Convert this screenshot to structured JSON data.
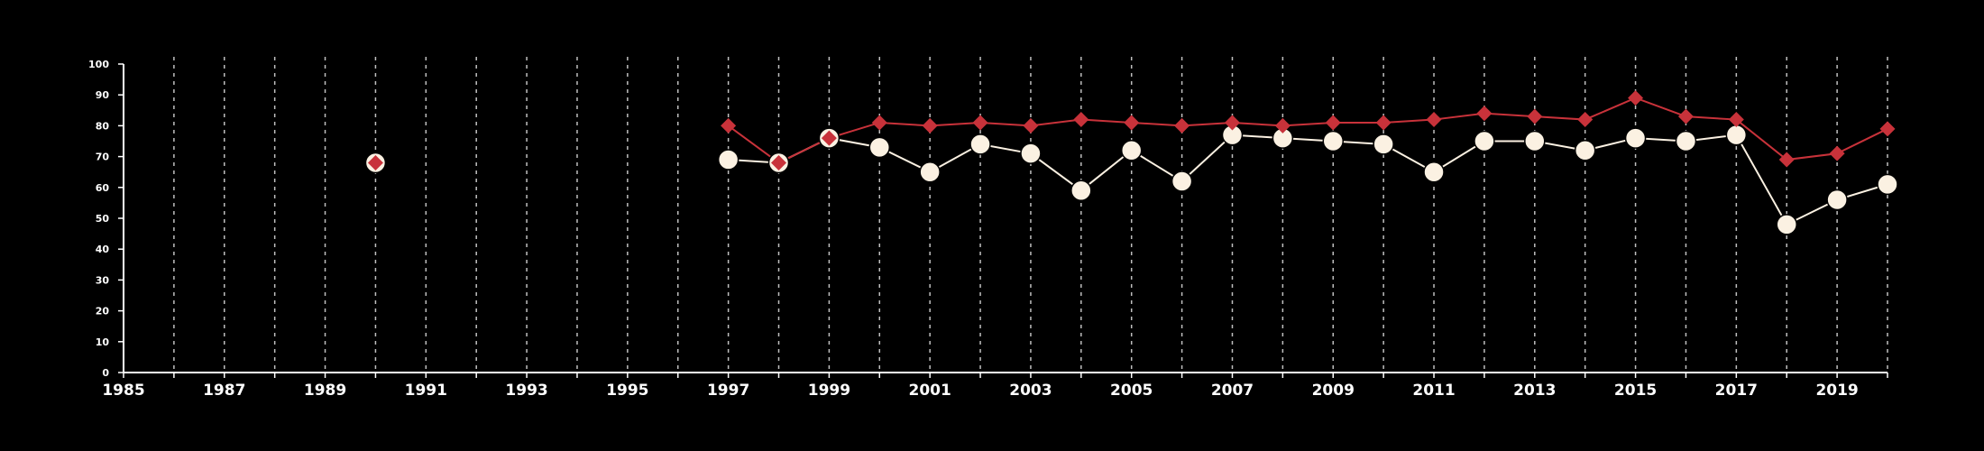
{
  "colors": {
    "background": "#000000",
    "axis": "#ffffff",
    "grid": "#bfbfbf",
    "series_white": "#fbf1e2",
    "series_red": "#c8323a"
  },
  "chart_data": {
    "type": "line",
    "title": "",
    "xlabel": "",
    "ylabel": "",
    "xlim": [
      1985,
      2020
    ],
    "ylim": [
      0,
      100
    ],
    "xticks": [
      "1985",
      "1987",
      "1989",
      "1991",
      "1993",
      "1995",
      "1997",
      "1999",
      "2001",
      "2003",
      "2005",
      "2007",
      "2009",
      "2011",
      "2013",
      "2015",
      "2017",
      "2019"
    ],
    "yticks": [
      "0",
      "10",
      "20",
      "30",
      "40",
      "50",
      "60",
      "70",
      "80",
      "90",
      "100"
    ],
    "grid": "vertical dashed lines at every year",
    "legend": "none",
    "series": [
      {
        "marker": "circle",
        "color": "#fbf1e2",
        "x": [
          1990,
          1997,
          1998,
          1999,
          2000,
          2001,
          2002,
          2003,
          2004,
          2005,
          2006,
          2007,
          2008,
          2009,
          2010,
          2011,
          2012,
          2013,
          2014,
          2015,
          2016,
          2017,
          2018,
          2019,
          2020
        ],
        "y": [
          68,
          69,
          68,
          76,
          73,
          65,
          74,
          71,
          59,
          72,
          62,
          77,
          76,
          75,
          74,
          65,
          75,
          75,
          72,
          76,
          75,
          77,
          48,
          56,
          61
        ]
      },
      {
        "marker": "diamond",
        "color": "#c8323a",
        "x": [
          1990,
          1997,
          1998,
          1999,
          2000,
          2001,
          2002,
          2003,
          2004,
          2005,
          2006,
          2007,
          2008,
          2009,
          2010,
          2011,
          2012,
          2013,
          2014,
          2015,
          2016,
          2017,
          2018,
          2019,
          2020
        ],
        "y": [
          68,
          80,
          68,
          76,
          81,
          80,
          81,
          80,
          82,
          81,
          80,
          81,
          80,
          81,
          81,
          82,
          84,
          83,
          82,
          89,
          83,
          82,
          69,
          71,
          79
        ]
      }
    ]
  }
}
